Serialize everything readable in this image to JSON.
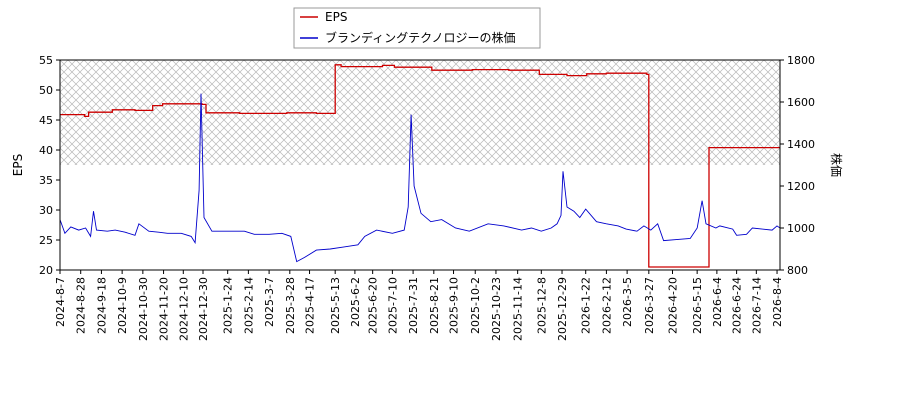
{
  "chart_data": {
    "type": "line",
    "ylabel_left": "EPS",
    "ylabel_right": "株価",
    "ylim_left": [
      20,
      55
    ],
    "ylim_right": [
      800,
      1800
    ],
    "yticks_left": [
      20,
      25,
      30,
      35,
      40,
      45,
      50,
      55
    ],
    "yticks_right": [
      800,
      1000,
      1200,
      1400,
      1600,
      1800
    ],
    "x_range": [
      "2024-8-7",
      "2026-8-7"
    ],
    "x_tick_labels": [
      "2024-8-7",
      "2024-8-28",
      "2024-9-18",
      "2024-10-9",
      "2024-10-30",
      "2024-11-20",
      "2024-12-10",
      "2024-12-30",
      "2025-1-24",
      "2025-2-14",
      "2025-3-7",
      "2025-3-28",
      "2025-4-17",
      "2025-5-13",
      "2025-6-2",
      "2025-6-20",
      "2025-7-10",
      "2025-7-31",
      "2025-8-21",
      "2025-9-10",
      "2025-10-2",
      "2025-10-23",
      "2025-11-14",
      "2025-12-8",
      "2025-12-29",
      "2026-1-22",
      "2026-2-12",
      "2026-3-5",
      "2026-3-27",
      "2026-4-20",
      "2026-5-15",
      "2026-6-4",
      "2026-6-24",
      "2026-7-14",
      "2026-8-4"
    ],
    "legend_position": "top-center",
    "hatched_band_left": [
      37.5,
      55
    ],
    "series": [
      {
        "name": "EPS",
        "axis": "left",
        "color": "#cc0000",
        "step": true,
        "points": [
          [
            "2024-8-7",
            45.9
          ],
          [
            "2024-9-1",
            45.6
          ],
          [
            "2024-9-5",
            46.3
          ],
          [
            "2024-9-29",
            46.7
          ],
          [
            "2024-10-22",
            46.6
          ],
          [
            "2024-11-9",
            47.4
          ],
          [
            "2024-11-19",
            47.7
          ],
          [
            "2024-12-29",
            47.6
          ],
          [
            "2025-1-2",
            46.2
          ],
          [
            "2025-2-5",
            46.1
          ],
          [
            "2025-3-25",
            46.2
          ],
          [
            "2025-4-24",
            46.1
          ],
          [
            "2025-5-12",
            46.1
          ],
          [
            "2025-5-13",
            54.2
          ],
          [
            "2025-5-19",
            53.9
          ],
          [
            "2025-6-30",
            54.1
          ],
          [
            "2025-7-12",
            53.8
          ],
          [
            "2025-8-19",
            53.3
          ],
          [
            "2025-9-29",
            53.4
          ],
          [
            "2025-11-5",
            53.3
          ],
          [
            "2025-12-6",
            52.6
          ],
          [
            "2026-1-3",
            52.4
          ],
          [
            "2026-1-23",
            52.7
          ],
          [
            "2026-2-12",
            52.8
          ],
          [
            "2026-3-25",
            52.6
          ],
          [
            "2026-3-27",
            20.5
          ],
          [
            "2026-5-25",
            20.5
          ],
          [
            "2026-5-27",
            40.4
          ],
          [
            "2026-8-7",
            40.4
          ]
        ]
      },
      {
        "name": "ブランディングテクノロジーの株価",
        "axis": "right",
        "color": "#0000cc",
        "step": false,
        "points": [
          [
            "2024-8-7",
            1040
          ],
          [
            "2024-8-12",
            975
          ],
          [
            "2024-8-18",
            1005
          ],
          [
            "2024-8-26",
            990
          ],
          [
            "2024-9-2",
            1000
          ],
          [
            "2024-9-7",
            960
          ],
          [
            "2024-9-10",
            1080
          ],
          [
            "2024-9-13",
            990
          ],
          [
            "2024-9-24",
            985
          ],
          [
            "2024-10-2",
            990
          ],
          [
            "2024-10-12",
            980
          ],
          [
            "2024-10-22",
            965
          ],
          [
            "2024-10-26",
            1020
          ],
          [
            "2024-11-5",
            985
          ],
          [
            "2024-11-15",
            980
          ],
          [
            "2024-11-24",
            975
          ],
          [
            "2024-12-8",
            975
          ],
          [
            "2024-12-18",
            960
          ],
          [
            "2024-12-22",
            930
          ],
          [
            "2024-12-26",
            1180
          ],
          [
            "2024-12-28",
            1640
          ],
          [
            "2024-12-31",
            1050
          ],
          [
            "2025-1-8",
            985
          ],
          [
            "2025-1-24",
            985
          ],
          [
            "2025-2-10",
            985
          ],
          [
            "2025-2-20",
            970
          ],
          [
            "2025-3-7",
            970
          ],
          [
            "2025-3-20",
            975
          ],
          [
            "2025-3-29",
            960
          ],
          [
            "2025-4-4",
            840
          ],
          [
            "2025-4-12",
            860
          ],
          [
            "2025-4-24",
            895
          ],
          [
            "2025-5-8",
            900
          ],
          [
            "2025-5-22",
            910
          ],
          [
            "2025-6-5",
            920
          ],
          [
            "2025-6-12",
            960
          ],
          [
            "2025-6-24",
            990
          ],
          [
            "2025-7-10",
            975
          ],
          [
            "2025-7-22",
            990
          ],
          [
            "2025-7-26",
            1100
          ],
          [
            "2025-7-29",
            1540
          ],
          [
            "2025-8-1",
            1200
          ],
          [
            "2025-8-8",
            1070
          ],
          [
            "2025-8-18",
            1030
          ],
          [
            "2025-8-29",
            1040
          ],
          [
            "2025-9-12",
            1000
          ],
          [
            "2025-9-26",
            985
          ],
          [
            "2025-10-15",
            1020
          ],
          [
            "2025-10-31",
            1010
          ],
          [
            "2025-11-18",
            990
          ],
          [
            "2025-11-28",
            1000
          ],
          [
            "2025-12-8",
            985
          ],
          [
            "2025-12-18",
            1000
          ],
          [
            "2025-12-24",
            1020
          ],
          [
            "2025-12-28",
            1060
          ],
          [
            "2025-12-30",
            1270
          ],
          [
            "2026-1-3",
            1100
          ],
          [
            "2026-1-10",
            1080
          ],
          [
            "2026-1-16",
            1050
          ],
          [
            "2026-1-22",
            1090
          ],
          [
            "2026-2-2",
            1030
          ],
          [
            "2026-2-12",
            1020
          ],
          [
            "2026-2-24",
            1010
          ],
          [
            "2026-3-4",
            995
          ],
          [
            "2026-3-15",
            985
          ],
          [
            "2026-3-22",
            1010
          ],
          [
            "2026-3-29",
            990
          ],
          [
            "2026-4-5",
            1020
          ],
          [
            "2026-4-11",
            940
          ],
          [
            "2026-4-24",
            945
          ],
          [
            "2026-5-8",
            950
          ],
          [
            "2026-5-15",
            1000
          ],
          [
            "2026-5-20",
            1130
          ],
          [
            "2026-5-24",
            1020
          ],
          [
            "2026-6-3",
            1000
          ],
          [
            "2026-6-7",
            1010
          ],
          [
            "2026-6-20",
            995
          ],
          [
            "2026-6-24",
            965
          ],
          [
            "2026-7-4",
            970
          ],
          [
            "2026-7-10",
            1000
          ],
          [
            "2026-7-20",
            995
          ],
          [
            "2026-7-30",
            990
          ],
          [
            "2026-8-4",
            1010
          ],
          [
            "2026-8-7",
            1000
          ]
        ]
      }
    ]
  }
}
